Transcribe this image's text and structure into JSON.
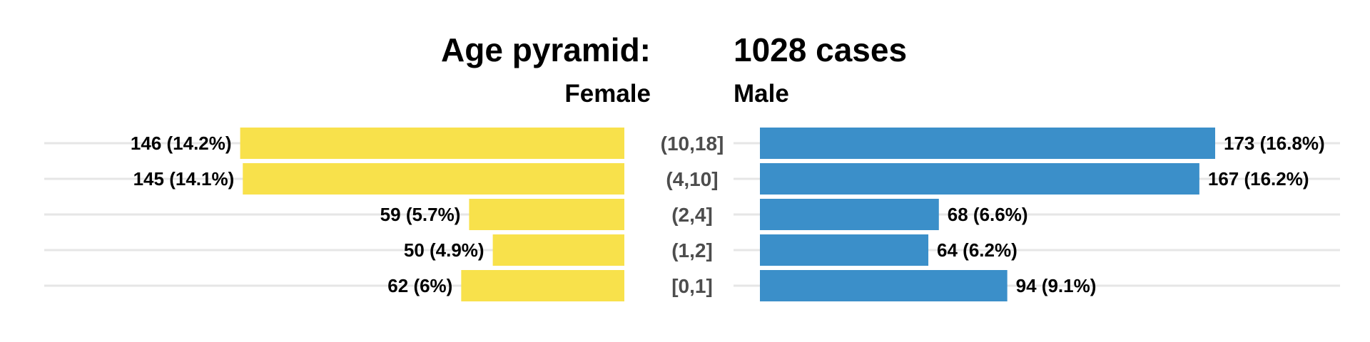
{
  "chart_data": {
    "type": "bar",
    "orientation": "horizontal",
    "layout": "age-pyramid",
    "title": "Age pyramid:",
    "title_count": "1028 cases",
    "total": 1028,
    "categories": [
      "(10,18]",
      "(4,10]",
      "(2,4]",
      "(1,2]",
      "[0,1]"
    ],
    "series": [
      {
        "name": "Female",
        "side": "left",
        "color": "#F8E14B",
        "values": [
          146,
          145,
          59,
          50,
          62
        ],
        "labels": [
          "146 (14.2%)",
          "145 (14.1%)",
          "59 (5.7%)",
          "50 (4.9%)",
          "62 (6%)"
        ]
      },
      {
        "name": "Male",
        "side": "right",
        "color": "#3B8FC9",
        "values": [
          173,
          167,
          68,
          64,
          94
        ],
        "labels": [
          "173 (16.8%)",
          "167 (16.2%)",
          "68 (6.6%)",
          "64 (6.2%)",
          "94 (9.1%)"
        ]
      }
    ],
    "xlim": [
      0,
      173
    ],
    "grid": true,
    "legend": "none"
  }
}
